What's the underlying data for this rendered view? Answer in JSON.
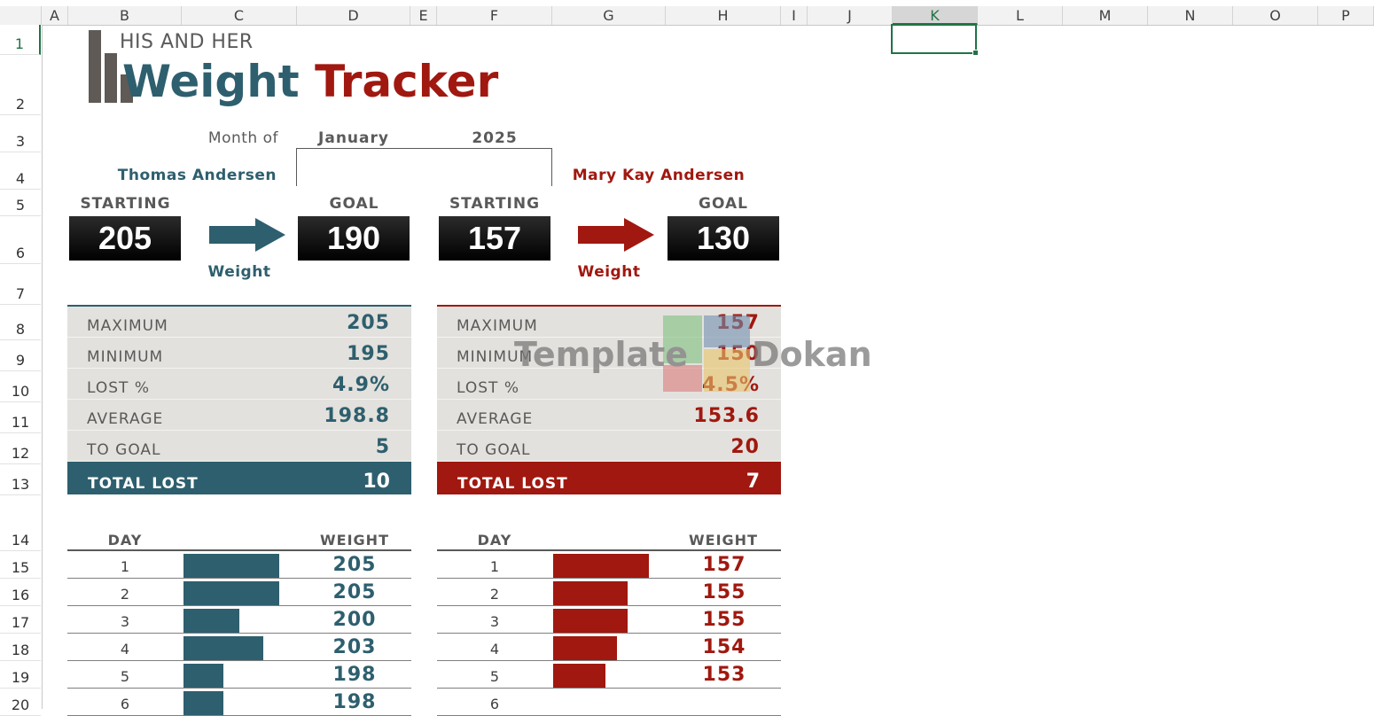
{
  "sheet": {
    "columns": [
      "A",
      "B",
      "C",
      "D",
      "E",
      "F",
      "G",
      "H",
      "I",
      "J",
      "K",
      "L",
      "M",
      "N",
      "O",
      "P"
    ],
    "rows": [
      "1",
      "2",
      "3",
      "4",
      "5",
      "6",
      "7",
      "8",
      "9",
      "10",
      "11",
      "12",
      "13",
      "14",
      "15",
      "16",
      "17",
      "18",
      "19",
      "20"
    ],
    "selected_column": "K",
    "selected_row": "1"
  },
  "header": {
    "subtitle": "HIS AND HER",
    "title_part1": "Weight ",
    "title_part2": "Tracker"
  },
  "month": {
    "label": "Month of",
    "month": "January",
    "year": "2025"
  },
  "his": {
    "name": "Thomas Andersen",
    "starting_label": "STARTING",
    "goal_label": "GOAL",
    "starting": "205",
    "goal": "190",
    "arrow_caption": "Weight",
    "stats": [
      {
        "label": "MAXIMUM",
        "value": "205"
      },
      {
        "label": "MINIMUM",
        "value": "195"
      },
      {
        "label": "LOST %",
        "value": "4.9%"
      },
      {
        "label": "AVERAGE",
        "value": "198.8"
      },
      {
        "label": "TO GOAL",
        "value": "5"
      }
    ],
    "total_lost_label": "TOTAL LOST",
    "total_lost": "10",
    "log_day_header": "DAY",
    "log_weight_header": "WEIGHT",
    "log": [
      {
        "day": "1",
        "weight": "205",
        "bar": 1.0
      },
      {
        "day": "2",
        "weight": "205",
        "bar": 1.0
      },
      {
        "day": "3",
        "weight": "200",
        "bar": 0.58
      },
      {
        "day": "4",
        "weight": "203",
        "bar": 0.83
      },
      {
        "day": "5",
        "weight": "198",
        "bar": 0.42
      },
      {
        "day": "6",
        "weight": "198",
        "bar": 0.42
      }
    ]
  },
  "her": {
    "name": "Mary Kay Andersen",
    "starting_label": "STARTING",
    "goal_label": "GOAL",
    "starting": "157",
    "goal": "130",
    "arrow_caption": "Weight",
    "stats": [
      {
        "label": "MAXIMUM",
        "value": "157"
      },
      {
        "label": "MINIMUM",
        "value": "150"
      },
      {
        "label": "LOST %",
        "value": "4.5%"
      },
      {
        "label": "AVERAGE",
        "value": "153.6"
      },
      {
        "label": "TO GOAL",
        "value": "20"
      }
    ],
    "total_lost_label": "TOTAL LOST",
    "total_lost": "7",
    "log_day_header": "DAY",
    "log_weight_header": "WEIGHT",
    "log": [
      {
        "day": "1",
        "weight": "157",
        "bar": 1.0
      },
      {
        "day": "2",
        "weight": "155",
        "bar": 0.78
      },
      {
        "day": "3",
        "weight": "155",
        "bar": 0.78
      },
      {
        "day": "4",
        "weight": "154",
        "bar": 0.67
      },
      {
        "day": "5",
        "weight": "153",
        "bar": 0.55
      },
      {
        "day": "6",
        "weight": "",
        "bar": 0
      }
    ]
  },
  "watermark": {
    "text_left": "Template",
    "text_right": "Dokan"
  },
  "colors": {
    "his_accent": "#2e5f6e",
    "her_accent": "#a0180f",
    "selection": "#217346"
  }
}
